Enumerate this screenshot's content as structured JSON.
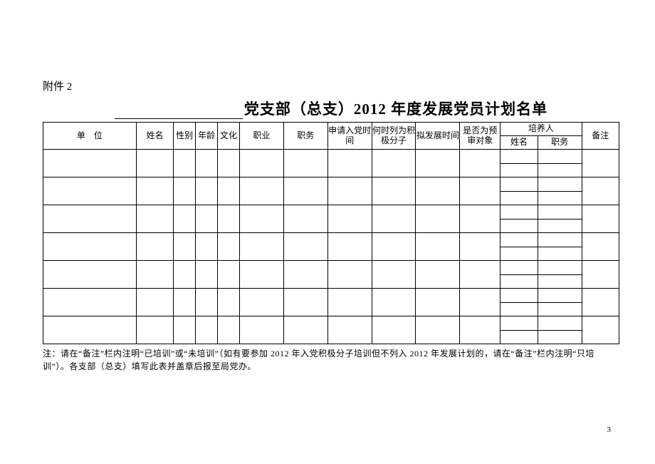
{
  "attachment_label": "附件 2",
  "title_prefix_blank": true,
  "title_main": "党支部（总支）2012 年度发展党员计划名单",
  "columns": {
    "unit": "单　位",
    "name": "姓名",
    "gender": "性别",
    "age": "年龄",
    "culture": "文化",
    "occupation": "职业",
    "duty": "职务",
    "apply_time": "申请入党时间",
    "when_activist": "何时列为积极分子",
    "plan_dev_time": "拟发展时间",
    "is_pre_review": "是否为预审对象",
    "cultivator_group": "培养人",
    "cultivator_name": "姓名",
    "cultivator_duty": "职务",
    "remark": "备注"
  },
  "col_widths": {
    "unit": "110",
    "name": "44",
    "gender": "26",
    "age": "26",
    "culture": "26",
    "occupation": "52",
    "duty": "52",
    "apply_time": "52",
    "when_activist": "52",
    "plan_dev_time": "52",
    "is_pre_review": "48",
    "cultivator_name": "44",
    "cultivator_duty": "52",
    "remark": "44"
  },
  "body_row_count": 7,
  "footnote": "注：请在“备注”栏内注明“已培训”或“未培训”（如有要参加 2012 年入党积极分子培训但不列入 2012 年发展计划的，请在“备注”栏内注明“只培训”）。各支部（总支）填写此表并盖章后报至局党办。",
  "page_number": "3"
}
